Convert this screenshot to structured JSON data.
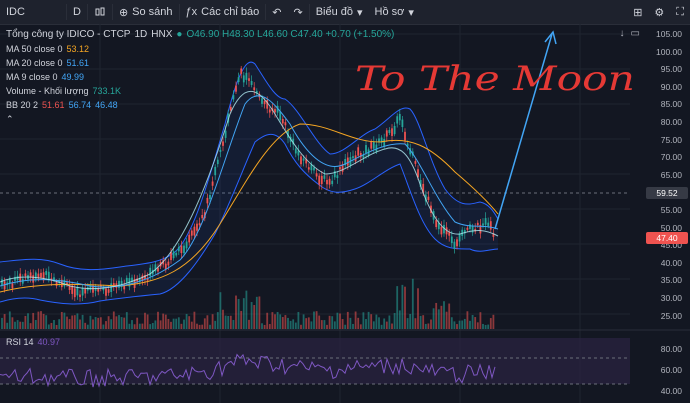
{
  "toolbar": {
    "symbol": "IDC",
    "interval": "D",
    "compare": "So sánh",
    "indicators": "Các chỉ báo",
    "chart_type": "Biểu đồ",
    "template": "Hồ sơ"
  },
  "legend": {
    "name": "Tổng công ty IDICO - CTCP",
    "interval": "1D",
    "exchange": "HNX",
    "ohlc": "O46.90 H48.30 L46.60 C47.40 +0.70 (+1.50%)",
    "ma50_label": "MA 50 close 0",
    "ma50_value": "53.12",
    "ma20_label": "MA 20 close 0",
    "ma20_value": "51.61",
    "ma9_label": "MA 9 close 0",
    "ma9_value": "49.99",
    "vol_label": "Volume - Khối lượng",
    "vol_value": "733.1K",
    "bb_label": "BB 20 2",
    "bb_v1": "51.61",
    "bb_v2": "56.74",
    "bb_v3": "46.48"
  },
  "rsi": {
    "label": "RSI 14",
    "value": "40.97"
  },
  "annotation": "To The Moon",
  "price_axis": [
    "105.00",
    "100.00",
    "95.00",
    "90.00",
    "85.00",
    "80.00",
    "75.00",
    "70.00",
    "65.00",
    "60.00",
    "55.00",
    "50.00",
    "45.00",
    "40.00",
    "35.00",
    "30.00",
    "25.00"
  ],
  "price_tags": {
    "upper": "59.52",
    "last": "47.40"
  },
  "rsi_axis": [
    "80.00",
    "60.00",
    "40.00"
  ],
  "colors": {
    "bg": "#131722",
    "up": "#26a69a",
    "down": "#ef5350",
    "ma50": "#f5a623",
    "ma20": "#42a5f5",
    "ma9": "#b2ebf2",
    "bb": "#2962ff",
    "rsi": "#7e57c2",
    "annotation_text": "#e53935",
    "arrow": "#42a5f5"
  }
}
